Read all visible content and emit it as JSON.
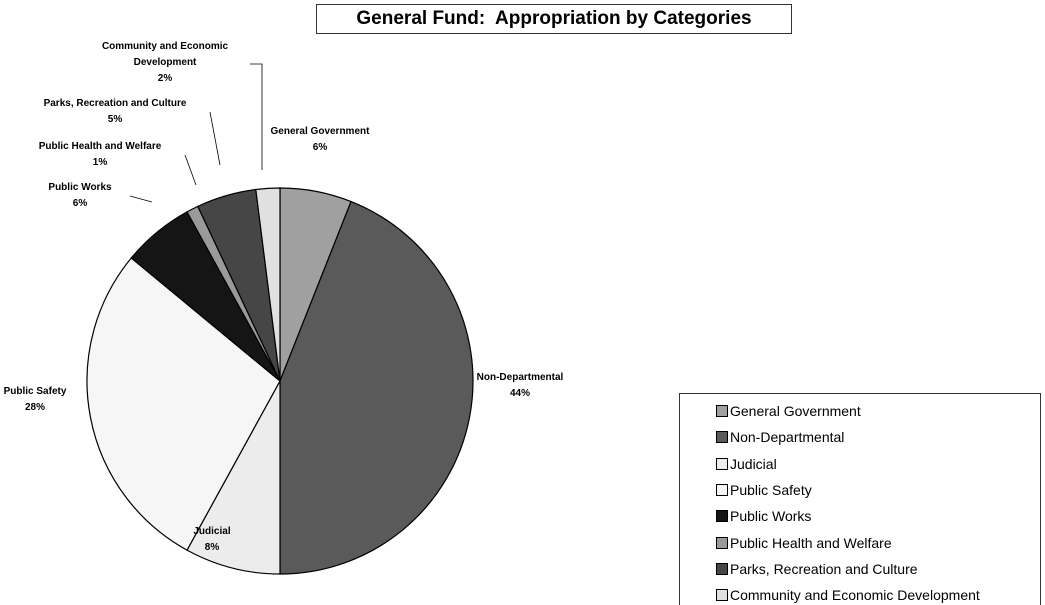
{
  "chart_data": {
    "type": "pie",
    "title": "General Fund:  Appropriation by Categories",
    "categories": [
      "General Government",
      "Non-Departmental",
      "Judicial",
      "Public Safety",
      "Public Works",
      "Public Health and Welfare",
      "Parks, Recreation and Culture",
      "Community and Economic Development"
    ],
    "values": [
      6,
      44,
      8,
      28,
      6,
      1,
      5,
      2
    ],
    "value_labels": [
      "6%",
      "44%",
      "8%",
      "28%",
      "6%",
      "1%",
      "5%",
      "2%"
    ],
    "colors": [
      "#a0a0a0",
      "#5a5a5a",
      "#ececec",
      "#f6f6f6",
      "#151515",
      "#9a9a9a",
      "#464646",
      "#e0e0e0"
    ],
    "legend": "lower right"
  }
}
